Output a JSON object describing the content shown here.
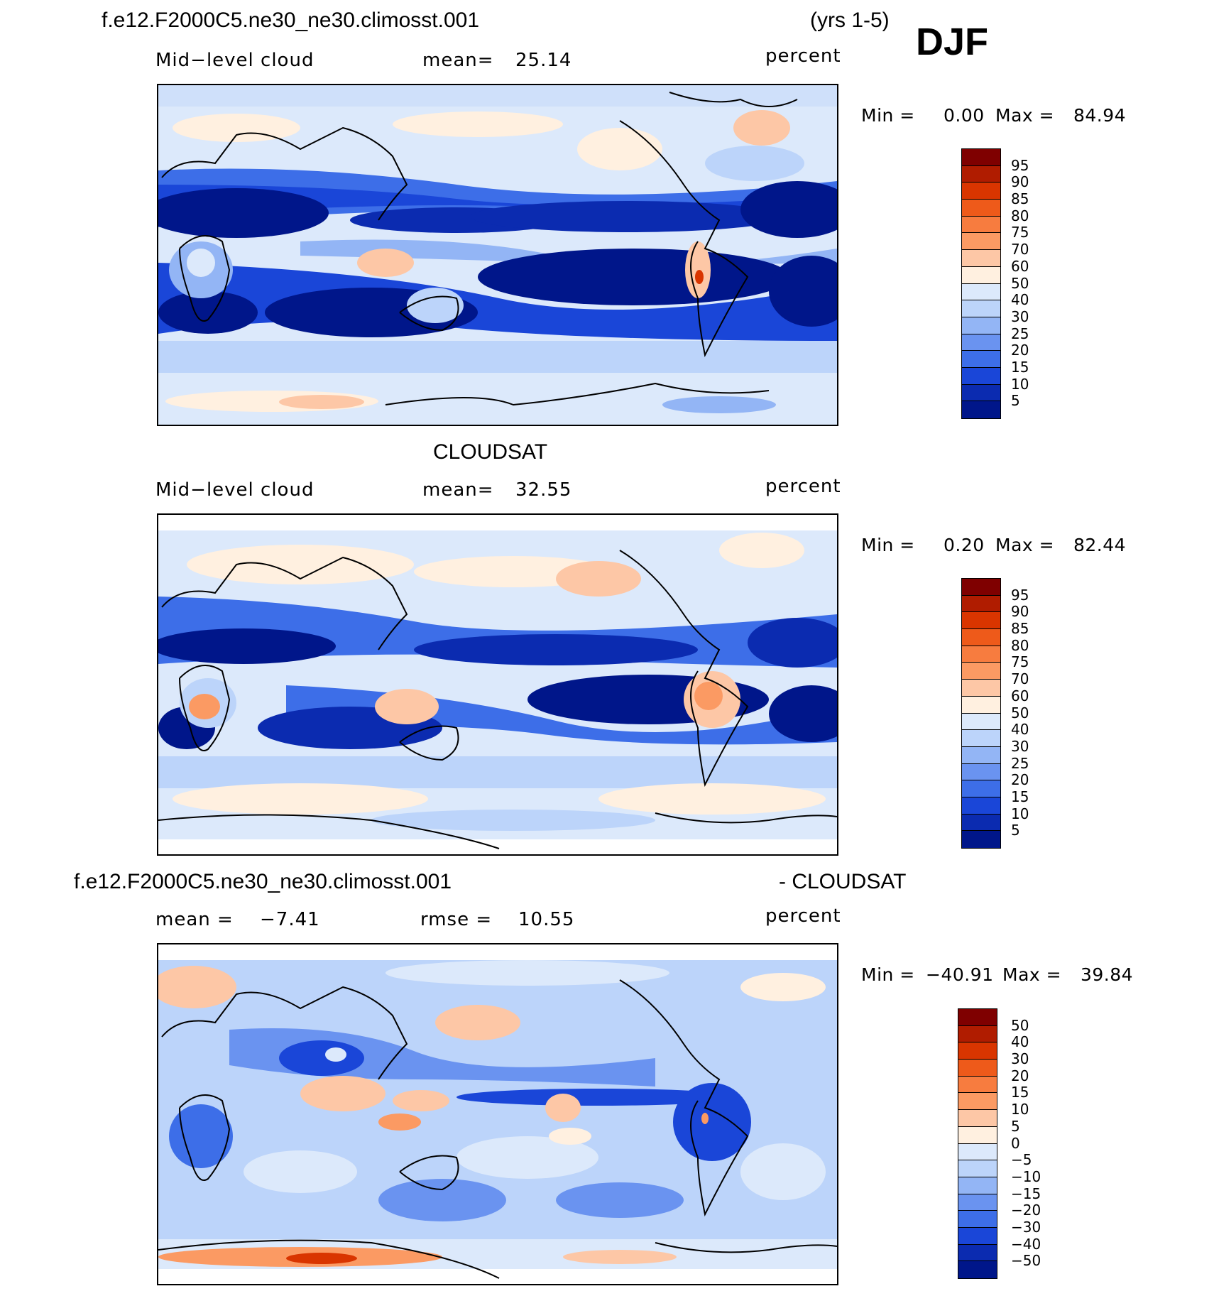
{
  "season": "DJF",
  "panel1": {
    "case": "f.e12.F2000C5.ne30_ne30.climosst.001",
    "years": "(yrs 1-5)",
    "variable": "Mid−level cloud",
    "mean_label": "mean=",
    "mean_value": "25.14",
    "units": "percent",
    "min_label": "Min =",
    "min_value": "0.00",
    "max_label": "Max =",
    "max_value": "84.94"
  },
  "panel2": {
    "title": "CLOUDSAT",
    "variable": "Mid−level cloud",
    "mean_label": "mean=",
    "mean_value": "32.55",
    "units": "percent",
    "min_label": "Min =",
    "min_value": "0.20",
    "max_label": "Max =",
    "max_value": "82.44"
  },
  "panel3": {
    "case": "f.e12.F2000C5.ne30_ne30.climosst.001",
    "suffix": "- CLOUDSAT",
    "mean_label": "mean =",
    "mean_value": "−7.41",
    "rmse_label": "rmse =",
    "rmse_value": "10.55",
    "units": "percent",
    "min_label": "Min =",
    "min_value": "−40.91",
    "max_label": "Max =",
    "max_value": "39.84"
  },
  "colorbar_abs": {
    "labels": [
      "95",
      "90",
      "85",
      "80",
      "75",
      "70",
      "60",
      "50",
      "40",
      "30",
      "25",
      "20",
      "15",
      "10",
      "5"
    ],
    "colors": [
      "#7f0000",
      "#b01c00",
      "#d93500",
      "#ee5a1a",
      "#f77c3f",
      "#fb9a63",
      "#fdc7a6",
      "#fff0e0",
      "#dce9fb",
      "#bcd4fa",
      "#93b5f5",
      "#6a93f0",
      "#3d6ee8",
      "#1a46d8",
      "#0b2bb0",
      "#00168a"
    ]
  },
  "colorbar_diff": {
    "labels": [
      "50",
      "40",
      "30",
      "20",
      "15",
      "10",
      "5",
      "0",
      "−5",
      "−10",
      "−15",
      "−20",
      "−30",
      "−40",
      "−50"
    ],
    "colors": [
      "#7f0000",
      "#b01c00",
      "#d93500",
      "#ee5a1a",
      "#f77c3f",
      "#fb9a63",
      "#fdc7a6",
      "#fff0e0",
      "#dce9fb",
      "#bcd4fa",
      "#93b5f5",
      "#6a93f0",
      "#3d6ee8",
      "#1a46d8",
      "#0b2bb0",
      "#00168a"
    ]
  }
}
